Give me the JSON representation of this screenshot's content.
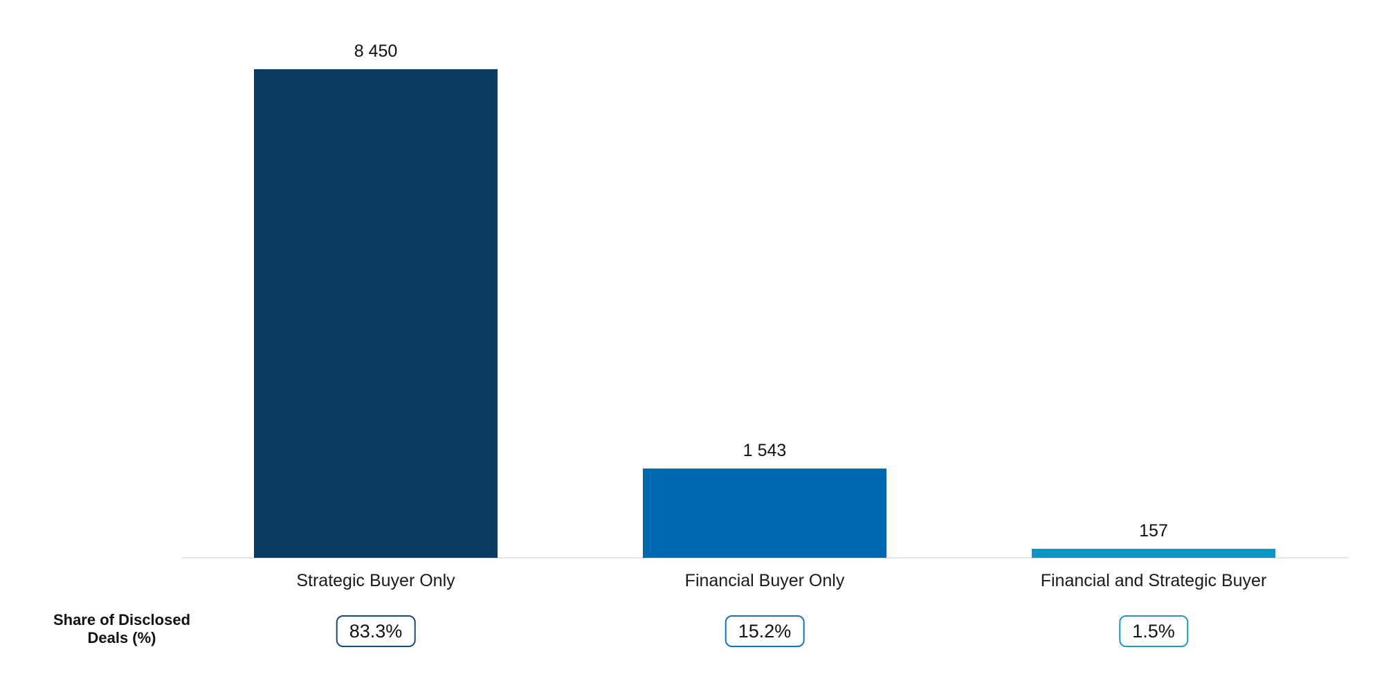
{
  "chart_data": {
    "type": "bar",
    "title": "",
    "xlabel": "",
    "ylabel": "",
    "categories": [
      "Strategic Buyer Only",
      "Financial Buyer Only",
      "Financial and Strategic Buyer"
    ],
    "values": [
      8450,
      1543,
      157
    ],
    "value_labels": [
      "8 450",
      "1 543",
      "157"
    ],
    "ylim": [
      0,
      8450
    ],
    "grid": "off",
    "legend": "none",
    "bar_colors": [
      "#0d3a61",
      "#0068b1",
      "#0e94c4"
    ],
    "axis_line_color": "#e4e4e4",
    "share_row": {
      "label_line1": "Share of Disclosed",
      "label_line2": "Deals (%)",
      "shares": [
        "83.3%",
        "15.2%",
        "1.5%"
      ],
      "badge_border_colors": [
        "#17497a",
        "#1570bf",
        "#1e97c5"
      ]
    }
  }
}
